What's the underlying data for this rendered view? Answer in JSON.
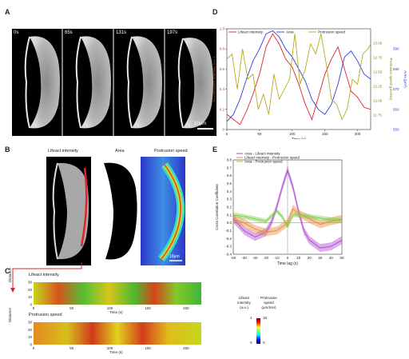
{
  "panels": {
    "A": {
      "letter": "A",
      "frames": [
        "0s",
        "65s",
        "131s",
        "197s"
      ],
      "scalebar": "10μm"
    },
    "B": {
      "letter": "B",
      "titles": [
        "Lifeact intensity",
        "Area",
        "Protrusion speed"
      ],
      "scalebar": "10μm"
    },
    "C": {
      "letter": "C",
      "row1_title": "Lifeact intensity",
      "row2_title": "Protrusion speed",
      "ylabel": "Distance",
      "xlabel": "Time (s)",
      "yticks": [
        "0",
        "10",
        "20",
        "30"
      ],
      "xticks": [
        "0",
        "50",
        "100",
        "150",
        "200"
      ],
      "cbar1_label_line1": "Lifeact",
      "cbar1_label_line2": "intensity",
      "cbar1_label_line3": "(a.u.)",
      "cbar2_label_line1": "Protrusion",
      "cbar2_label_line2": "speed",
      "cbar2_label_line3": "(μm/min)",
      "cbar_ticks_left": [
        "1",
        "0"
      ],
      "cbar_ticks_right": [
        "15",
        "0"
      ]
    },
    "D": {
      "letter": "D"
    },
    "E": {
      "letter": "E"
    }
  },
  "colors": {
    "lifeact": "#e0252a",
    "area": "#2a3fd6",
    "protrusion": "#b7aa1f",
    "ccf_area_lifeact": "#b04ad1",
    "ccf_lifeact_protrusion": "#e9893a",
    "ccf_area_protrusion": "#7dcc4a"
  },
  "chart_data": [
    {
      "type": "line",
      "panel": "D",
      "xlabel": "Time (s)",
      "ylabel_left": "Fluorescence intensity (a.u.)",
      "ylabel_right1": "Protrusion speed (μm/min)",
      "ylabel_right2": "Area (μm²)",
      "xlim": [
        0,
        220
      ],
      "ylim_left": [
        0,
        1
      ],
      "ylim_right1": [
        11.5,
        13.25
      ],
      "ylim_right2": [
        550,
        600
      ],
      "xticks": [
        "0",
        "50",
        "100",
        "150",
        "200"
      ],
      "yticks_left": [
        "0",
        "0.2",
        "0.4",
        "0.6",
        "0.8",
        "1.0"
      ],
      "yticks_right1": [
        "11.75",
        "12.00",
        "12.25",
        "12.50",
        "12.75",
        "13.00"
      ],
      "yticks_right2": [
        "550",
        "560",
        "570",
        "580",
        "590"
      ],
      "legend_position": "top",
      "series": [
        {
          "name": "Lifeact intensity",
          "x": [
            0,
            10,
            20,
            30,
            40,
            50,
            60,
            70,
            80,
            90,
            100,
            110,
            120,
            130,
            140,
            150,
            160,
            170,
            180,
            190,
            200,
            210,
            220
          ],
          "values": [
            0.15,
            0.1,
            0.05,
            0.18,
            0.35,
            0.55,
            0.82,
            0.95,
            0.85,
            0.7,
            0.62,
            0.45,
            0.25,
            0.1,
            0.32,
            0.55,
            0.7,
            0.82,
            0.6,
            0.38,
            0.32,
            0.22,
            0.2
          ]
        },
        {
          "name": "Area",
          "x": [
            0,
            10,
            20,
            30,
            40,
            50,
            60,
            70,
            80,
            90,
            100,
            110,
            120,
            130,
            140,
            150,
            160,
            170,
            180,
            190,
            200,
            210,
            220
          ],
          "values": [
            0.08,
            0.15,
            0.3,
            0.5,
            0.68,
            0.8,
            0.95,
            0.98,
            0.92,
            0.8,
            0.72,
            0.6,
            0.48,
            0.3,
            0.2,
            0.15,
            0.25,
            0.45,
            0.72,
            0.78,
            0.68,
            0.55,
            0.5
          ]
        },
        {
          "name": "Protrusion speed",
          "x": [
            0,
            8,
            16,
            24,
            32,
            40,
            48,
            56,
            64,
            72,
            80,
            88,
            96,
            104,
            112,
            120,
            128,
            136,
            144,
            152,
            160,
            168,
            176,
            184,
            192,
            200,
            208,
            216,
            220
          ],
          "values": [
            0.7,
            0.75,
            0.4,
            0.8,
            0.5,
            0.55,
            0.2,
            0.35,
            0.15,
            0.55,
            0.3,
            0.4,
            0.5,
            0.95,
            0.45,
            0.6,
            0.85,
            0.75,
            0.95,
            0.65,
            0.3,
            0.25,
            0.1,
            0.2,
            0.5,
            0.45,
            0.75,
            0.8,
            0.85
          ]
        }
      ]
    },
    {
      "type": "line",
      "panel": "E",
      "xlabel": "Time lag (s)",
      "ylabel": "Cross Correlation Coefficient",
      "xlim": [
        -50,
        50
      ],
      "ylim": [
        -0.4,
        0.8
      ],
      "xticks": [
        "-50",
        "-40",
        "-30",
        "-20",
        "-10",
        "0",
        "10",
        "20",
        "30",
        "40",
        "50"
      ],
      "yticks": [
        "-0.4",
        "-0.3",
        "-0.2",
        "-0.1",
        "0.0",
        "0.1",
        "0.2",
        "0.3",
        "0.4",
        "0.5",
        "0.6",
        "0.7",
        "0.8"
      ],
      "legend_position": "top-left",
      "series": [
        {
          "name": "Area - Lifeact intensity",
          "x": [
            -50,
            -40,
            -30,
            -20,
            -15,
            -10,
            -5,
            0,
            5,
            10,
            15,
            20,
            30,
            40,
            50
          ],
          "values": [
            0.05,
            -0.1,
            -0.18,
            -0.12,
            0.0,
            0.2,
            0.45,
            0.67,
            0.45,
            0.15,
            -0.1,
            -0.22,
            -0.32,
            -0.3,
            -0.22
          ],
          "band": 0.05
        },
        {
          "name": "Lifeact intensity - Protrusion speed",
          "x": [
            -50,
            -40,
            -30,
            -20,
            -10,
            -5,
            0,
            5,
            10,
            20,
            30,
            40,
            50
          ],
          "values": [
            0.05,
            0.0,
            -0.08,
            -0.12,
            -0.1,
            -0.05,
            0.0,
            0.18,
            0.12,
            0.05,
            -0.02,
            0.02,
            0.05
          ],
          "band": 0.05
        },
        {
          "name": "Area - Protrusion speed",
          "x": [
            -50,
            -40,
            -30,
            -20,
            -10,
            -5,
            0,
            5,
            10,
            20,
            30,
            40,
            50
          ],
          "values": [
            0.1,
            0.08,
            0.05,
            0.02,
            0.15,
            0.08,
            -0.05,
            0.1,
            0.1,
            0.08,
            0.06,
            0.04,
            0.03
          ],
          "band": 0.03
        }
      ]
    }
  ]
}
